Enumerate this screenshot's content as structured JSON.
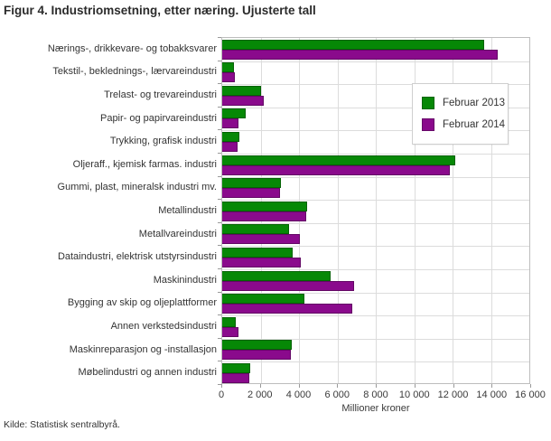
{
  "title": "Figur 4. Industriomsetning, etter næring. Ujusterte tall",
  "source": "Kilde: Statistisk sentralbyrå.",
  "colors": {
    "feb2013": "#068806",
    "feb2014": "#8A0A8C",
    "grid": "#dcdcdc",
    "plot_border": "#bdbdbd",
    "text": "#333333"
  },
  "chart_data": {
    "type": "bar",
    "orientation": "horizontal",
    "title": "Figur 4. Industriomsetning, etter næring. Ujusterte tall",
    "xlabel": "Millioner kroner",
    "ylabel": "",
    "xlim": [
      0,
      16000
    ],
    "grid": "both",
    "legend_position": "upper-right-inside",
    "categories": [
      "Nærings-, drikkevare- og tobakksvarer",
      "Tekstil-, beklednings-, lærvareindustri",
      "Trelast- og trevareindustri",
      "Papir- og papirvareindustri",
      "Trykking, grafisk industri",
      "Oljeraff., kjemisk farmas. industri",
      "Gummi, plast, mineralsk industri mv.",
      "Metallindustri",
      "Metallvareindustri",
      "Dataindustri, elektrisk utstyrsindustri",
      "Maskinindustri",
      "Bygging av skip og oljeplattformer",
      "Annen verkstedsindustri",
      "Maskinreparasjon og -installasjon",
      "Møbelindustri og annen industri"
    ],
    "series": [
      {
        "name": "Februar 2013",
        "color": "#068806",
        "values": [
          13650,
          620,
          2000,
          1200,
          900,
          12150,
          3080,
          4400,
          3500,
          3670,
          5650,
          4280,
          700,
          3600,
          1480
        ]
      },
      {
        "name": "Februar 2014",
        "color": "#8A0A8C",
        "values": [
          14350,
          660,
          2170,
          850,
          780,
          11850,
          3010,
          4360,
          4050,
          4080,
          6850,
          6780,
          860,
          3560,
          1390
        ]
      }
    ],
    "xticks": [
      0,
      2000,
      4000,
      6000,
      8000,
      10000,
      12000,
      14000,
      16000
    ],
    "xtick_labels": [
      "0",
      "2 000",
      "4 000",
      "6 000",
      "8 000",
      "10 000",
      "12 000",
      "14 000",
      "16 000"
    ]
  }
}
